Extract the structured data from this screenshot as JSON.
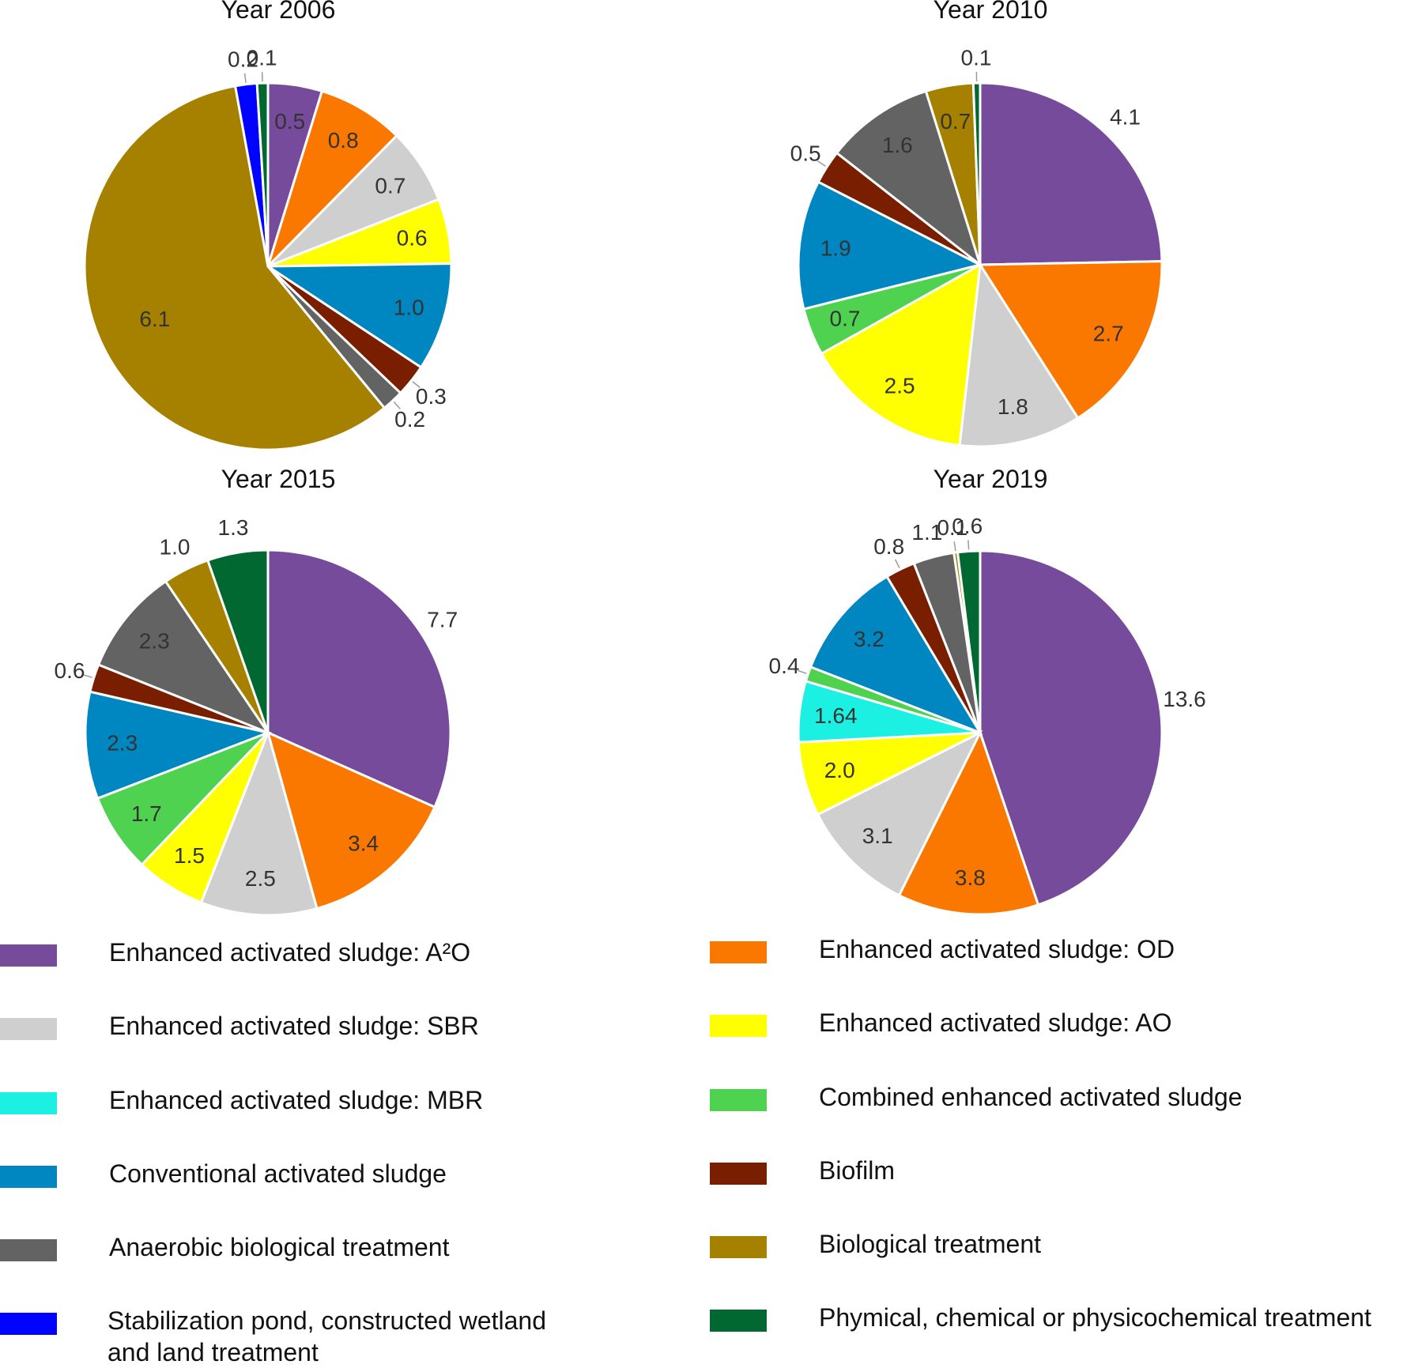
{
  "colors": {
    "a2o": "#764b9c",
    "od": "#fb7800",
    "sbr": "#cfcfcf",
    "ao": "#ffff00",
    "mbr": "#1cf0e2",
    "combined": "#4fd24f",
    "conventional": "#0086c0",
    "biofilm": "#7a1e00",
    "anaerobic": "#636363",
    "biological": "#a68100",
    "stabilization": "#0004ff",
    "physical": "#006830"
  },
  "legend": [
    {
      "key": "a2o",
      "label": "Enhanced activated sludge: A²O"
    },
    {
      "key": "od",
      "label": "Enhanced activated sludge: OD"
    },
    {
      "key": "sbr",
      "label": "Enhanced activated sludge: SBR"
    },
    {
      "key": "ao",
      "label": "Enhanced activated sludge: AO"
    },
    {
      "key": "mbr",
      "label": "Enhanced activated sludge: MBR"
    },
    {
      "key": "combined",
      "label": "Combined enhanced activated sludge"
    },
    {
      "key": "conventional",
      "label": "Conventional activated sludge"
    },
    {
      "key": "biofilm",
      "label": "Biofilm"
    },
    {
      "key": "anaerobic",
      "label": "Anaerobic biological treatment"
    },
    {
      "key": "biological",
      "label": "Biological treatment"
    },
    {
      "key": "stabilization",
      "label": "Stabilization pond, constructed wetland\nand land treatment"
    },
    {
      "key": "physical",
      "label": "Phymical, chemical or physicochemical treatment"
    }
  ],
  "chart_data": [
    {
      "type": "pie",
      "title": "Year 2006",
      "start_angle_deg": 0,
      "direction": "clockwise",
      "slices": [
        {
          "key": "a2o",
          "value": 0.5,
          "label": "0.5"
        },
        {
          "key": "od",
          "value": 0.8,
          "label": "0.8"
        },
        {
          "key": "sbr",
          "value": 0.7,
          "label": "0.7"
        },
        {
          "key": "ao",
          "value": 0.6,
          "label": "0.6"
        },
        {
          "key": "conventional",
          "value": 1.0,
          "label": "1.0"
        },
        {
          "key": "biofilm",
          "value": 0.3,
          "label": "0.3",
          "outside": true
        },
        {
          "key": "anaerobic",
          "value": 0.2,
          "label": "0.2",
          "outside": true
        },
        {
          "key": "biological",
          "value": 6.1,
          "label": "6.1"
        },
        {
          "key": "stabilization",
          "value": 0.2,
          "label": "0.2",
          "outside": true
        },
        {
          "key": "physical",
          "value": 0.1,
          "label": "0.1",
          "outside": true
        }
      ]
    },
    {
      "type": "pie",
      "title": "Year 2010",
      "start_angle_deg": 0,
      "direction": "clockwise",
      "slices": [
        {
          "key": "a2o",
          "value": 4.1,
          "label": "4.1",
          "outside": true
        },
        {
          "key": "od",
          "value": 2.7,
          "label": "2.7"
        },
        {
          "key": "sbr",
          "value": 1.8,
          "label": "1.8"
        },
        {
          "key": "ao",
          "value": 2.5,
          "label": "2.5"
        },
        {
          "key": "combined",
          "value": 0.7,
          "label": "0.7"
        },
        {
          "key": "conventional",
          "value": 1.9,
          "label": "1.9"
        },
        {
          "key": "biofilm",
          "value": 0.5,
          "label": "0.5",
          "outside": true
        },
        {
          "key": "anaerobic",
          "value": 1.6,
          "label": "1.6"
        },
        {
          "key": "biological",
          "value": 0.7,
          "label": "0.7"
        },
        {
          "key": "physical",
          "value": 0.1,
          "label": "0.1",
          "outside": true
        }
      ]
    },
    {
      "type": "pie",
      "title": "Year 2015",
      "start_angle_deg": 0,
      "direction": "clockwise",
      "slices": [
        {
          "key": "a2o",
          "value": 7.7,
          "label": "7.7",
          "outside": true
        },
        {
          "key": "od",
          "value": 3.4,
          "label": "3.4"
        },
        {
          "key": "sbr",
          "value": 2.5,
          "label": "2.5"
        },
        {
          "key": "ao",
          "value": 1.5,
          "label": "1.5"
        },
        {
          "key": "combined",
          "value": 1.7,
          "label": "1.7"
        },
        {
          "key": "conventional",
          "value": 2.3,
          "label": "2.3"
        },
        {
          "key": "biofilm",
          "value": 0.6,
          "label": "0.6",
          "outside": true
        },
        {
          "key": "anaerobic",
          "value": 2.3,
          "label": "2.3"
        },
        {
          "key": "biological",
          "value": 1.0,
          "label": "1.0",
          "outside": true
        },
        {
          "key": "physical",
          "value": 1.3,
          "label": "1.3",
          "outside": true
        }
      ]
    },
    {
      "type": "pie",
      "title": "Year 2019",
      "start_angle_deg": 0,
      "direction": "clockwise",
      "slices": [
        {
          "key": "a2o",
          "value": 13.6,
          "label": "13.6",
          "outside": true
        },
        {
          "key": "od",
          "value": 3.8,
          "label": "3.8"
        },
        {
          "key": "sbr",
          "value": 3.1,
          "label": "3.1"
        },
        {
          "key": "ao",
          "value": 2.0,
          "label": "2.0"
        },
        {
          "key": "mbr",
          "value": 1.64,
          "label": "1.64"
        },
        {
          "key": "combined",
          "value": 0.4,
          "label": "0.4",
          "outside": true
        },
        {
          "key": "conventional",
          "value": 3.2,
          "label": "3.2"
        },
        {
          "key": "biofilm",
          "value": 0.8,
          "label": "0.8",
          "outside": true
        },
        {
          "key": "anaerobic",
          "value": 1.1,
          "label": "1.1",
          "outside": true
        },
        {
          "key": "biological",
          "value": 0.1,
          "label": "0.1",
          "outside": true
        },
        {
          "key": "physical",
          "value": 0.6,
          "label": "0.6",
          "outside": true
        }
      ]
    }
  ]
}
